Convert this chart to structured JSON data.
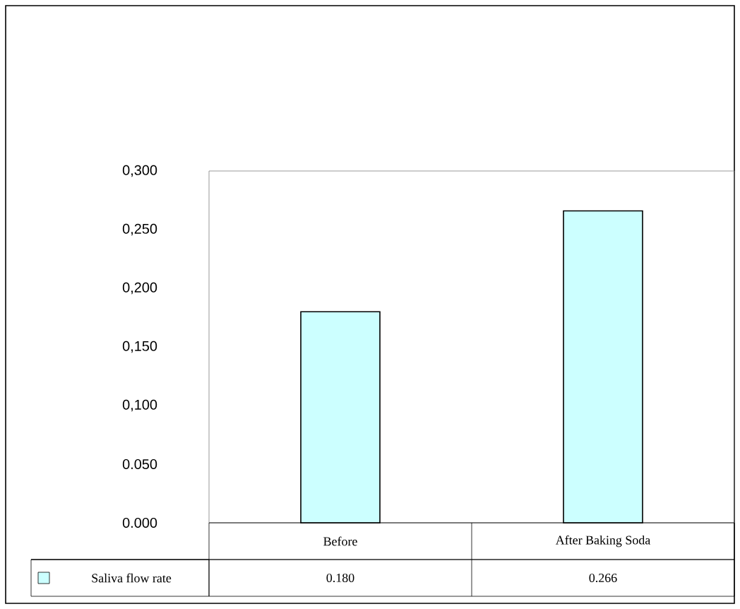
{
  "chart_data": {
    "type": "bar",
    "categories": [
      "Before",
      "After Baking Soda"
    ],
    "series": [
      {
        "name": "Saliva flow rate",
        "color": "#ccffff",
        "values": [
          0.18,
          0.266
        ],
        "value_labels": [
          "0.180",
          "0.266"
        ]
      }
    ],
    "ylim": [
      0,
      0.3
    ],
    "yticks": [
      {
        "value": 0,
        "label": "0.000"
      },
      {
        "value": 0.05,
        "label": "0.050"
      },
      {
        "value": 0.1,
        "label": "0,100"
      },
      {
        "value": 0.15,
        "label": "0,150"
      },
      {
        "value": 0.2,
        "label": "0,200"
      },
      {
        "value": 0.25,
        "label": "0,250"
      },
      {
        "value": 0.3,
        "label": "0,300"
      }
    ],
    "legend": "bottom"
  }
}
